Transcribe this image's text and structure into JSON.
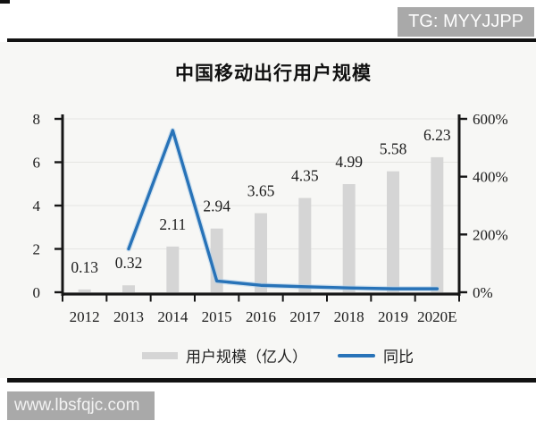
{
  "page": {
    "top_badge": "TG: MYYJJPP",
    "bottom_badge": "www.lbsfqjc.com"
  },
  "chart_data": {
    "type": "bar+line-combo",
    "title": "中国移动出行用户规模",
    "categories": [
      "2012",
      "2013",
      "2014",
      "2015",
      "2016",
      "2017",
      "2018",
      "2019",
      "2020E"
    ],
    "series": [
      {
        "name": "用户规模（亿人）",
        "type": "bar",
        "axis": "left",
        "color": "#d5d5d5",
        "values": [
          0.13,
          0.32,
          2.11,
          2.94,
          3.65,
          4.35,
          4.99,
          5.58,
          6.23
        ],
        "data_labels": [
          "0.13",
          "0.32",
          "2.11",
          "2.94",
          "3.65",
          "4.35",
          "4.99",
          "5.58",
          "6.23"
        ]
      },
      {
        "name": "同比",
        "type": "line",
        "axis": "right",
        "color": "#2873b8",
        "values_pct": [
          null,
          150,
          560,
          39,
          24,
          19,
          15,
          12,
          12
        ]
      }
    ],
    "left_axis": {
      "ticks": [
        0,
        2,
        4,
        6,
        8
      ],
      "range": [
        0,
        8
      ]
    },
    "right_axis": {
      "ticks": [
        0,
        200,
        400,
        600
      ],
      "suffix": "%",
      "range_pct": [
        0,
        600
      ]
    },
    "grid": true,
    "legend_position": "bottom"
  }
}
